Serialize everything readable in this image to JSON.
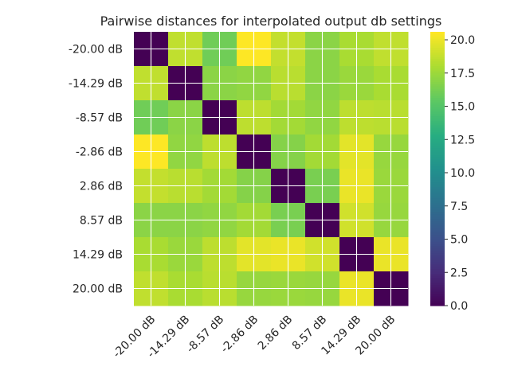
{
  "chart_data": {
    "type": "heatmap",
    "title": "Pairwise distances for interpolated output db settings",
    "xlabel": "",
    "ylabel": "",
    "x_categories": [
      "-20.00 dB",
      "-14.29 dB",
      "-8.57 dB",
      "-2.86 dB",
      "2.86 dB",
      "8.57 dB",
      "14.29 dB",
      "20.00 dB"
    ],
    "y_categories": [
      "-20.00 dB",
      "-14.29 dB",
      "-8.57 dB",
      "-2.86 dB",
      "2.86 dB",
      "8.57 dB",
      "14.29 dB",
      "20.00 dB"
    ],
    "values": [
      [
        0.0,
        18.7,
        16.1,
        20.6,
        18.8,
        17.0,
        18.0,
        18.7
      ],
      [
        18.7,
        0.0,
        17.0,
        17.2,
        18.5,
        17.0,
        17.5,
        18.0
      ],
      [
        16.1,
        17.0,
        0.0,
        18.6,
        17.8,
        17.2,
        18.6,
        18.5
      ],
      [
        20.6,
        17.2,
        18.6,
        0.0,
        16.8,
        17.8,
        19.8,
        17.4
      ],
      [
        18.8,
        18.5,
        17.8,
        16.8,
        0.0,
        16.4,
        20.0,
        17.5
      ],
      [
        17.0,
        17.0,
        17.2,
        17.8,
        16.4,
        0.0,
        19.2,
        17.4
      ],
      [
        18.0,
        17.5,
        18.6,
        19.8,
        20.0,
        19.2,
        0.0,
        20.0
      ],
      [
        18.7,
        18.0,
        18.5,
        17.4,
        17.5,
        17.4,
        20.0,
        0.0
      ]
    ],
    "colormap": "viridis",
    "vmin": 0.0,
    "vmax": 20.6,
    "colorbar_ticks": [
      "0.0",
      "2.5",
      "5.0",
      "7.5",
      "10.0",
      "12.5",
      "15.0",
      "17.5",
      "20.0"
    ],
    "grid": true,
    "grid_color": "#ffffff"
  }
}
